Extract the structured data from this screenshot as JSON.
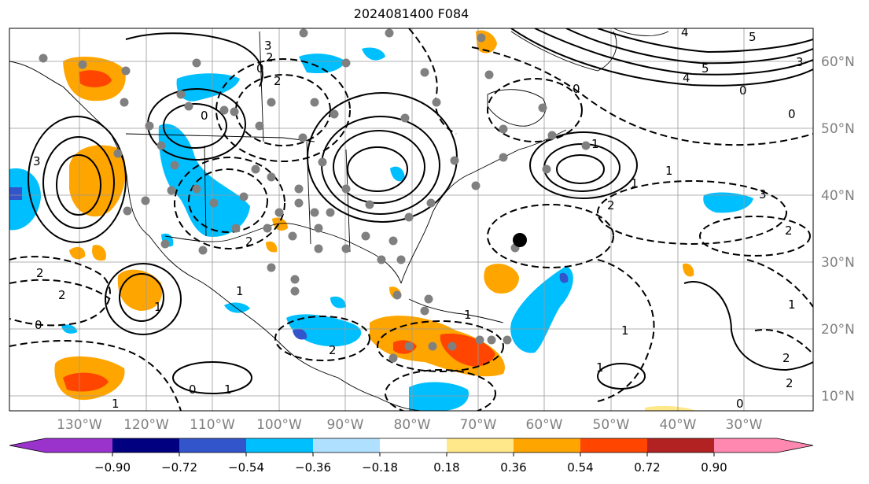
{
  "title": "2024081400 F084",
  "lon_labels": [
    "130°W",
    "120°W",
    "110°W",
    "100°W",
    "90°W",
    "80°W",
    "70°W",
    "60°W",
    "50°W",
    "40°W",
    "30°W"
  ],
  "lat_labels": [
    "60°N",
    "50°N",
    "40°N",
    "30°N",
    "20°N",
    "10°N"
  ],
  "colorbar": {
    "ticks": [
      "−0.90",
      "−0.72",
      "−0.54",
      "−0.36",
      "−0.18",
      "0.18",
      "0.36",
      "0.54",
      "0.72",
      "0.90"
    ],
    "colors": [
      "#9933cc",
      "#000080",
      "#3355cc",
      "#00bfff",
      "#b0e0ff",
      "#ffffff",
      "#ffe88a",
      "#ffa500",
      "#ff4500",
      "#b22222",
      "#ff88b0"
    ]
  },
  "contour_labels": [
    "3",
    "0",
    "2",
    "2",
    "0",
    "0",
    "0",
    "3",
    "4",
    "5",
    "4",
    "5",
    "3",
    "2",
    "0",
    "0",
    "1",
    "1",
    "1",
    "1",
    "2",
    "3",
    "2",
    "1",
    "1",
    "1",
    "1",
    "1",
    "0",
    "0",
    "1",
    "1",
    "2",
    "2",
    "2",
    "2",
    "2"
  ],
  "map": {
    "lon_range": [
      -138,
      -17
    ],
    "lat_range": [
      8,
      65
    ],
    "pressure_center_marker": {
      "lon": -64,
      "lat": 33.5
    }
  }
}
